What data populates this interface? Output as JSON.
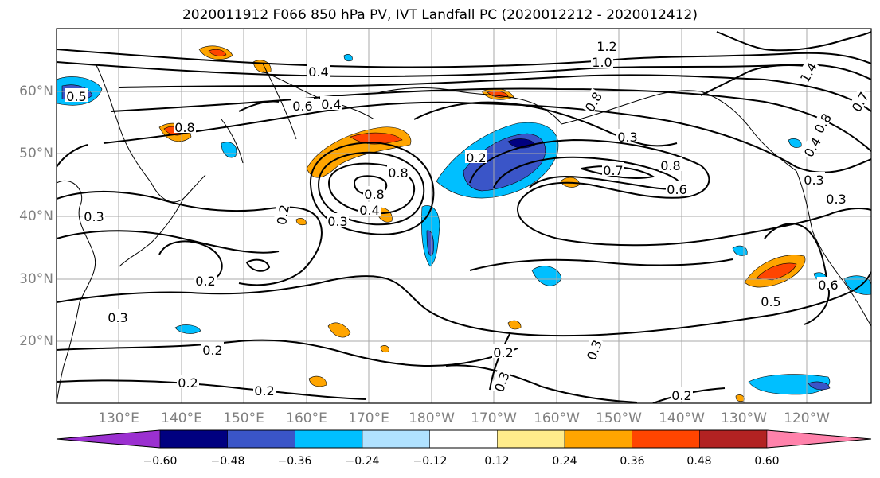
{
  "title": "2020011912 F066 850 hPa PV, IVT Landfall PC (2020012212 - 2020012412)",
  "lat_labels": [
    "60°N",
    "50°N",
    "40°N",
    "30°N",
    "20°N"
  ],
  "lon_labels": [
    "130°E",
    "140°E",
    "150°E",
    "160°E",
    "170°E",
    "180°W",
    "170°W",
    "160°W",
    "150°W",
    "140°W",
    "130°W",
    "120°W"
  ],
  "contour_labels": [
    "1.2",
    "1.0",
    "0.8",
    "0.4",
    "0.5",
    "0.6",
    "0.8",
    "0.3",
    "0.2",
    "0.7",
    "0.8",
    "0.6",
    "0.3",
    "0.8",
    "0.4",
    "0.3",
    "0.2",
    "0.2",
    "0.3",
    "0.2",
    "0.2",
    "0.2",
    "0.3",
    "0.3",
    "0.2",
    "0.5",
    "0.6",
    "0.3",
    "0.3",
    "0.4",
    "0.8",
    "0.7",
    "1.4",
    "0.8",
    "0.4",
    "0.2"
  ],
  "colorbar": {
    "ticks": [
      "−0.60",
      "−0.48",
      "−0.36",
      "−0.24",
      "−0.12",
      "0.12",
      "0.24",
      "0.36",
      "0.48",
      "0.60"
    ],
    "colors": [
      "#9b30d0",
      "#000080",
      "#3a55c8",
      "#00bfff",
      "#b0e2ff",
      "#ffffff",
      "#ffec8b",
      "#ffa500",
      "#ff4500",
      "#b22222",
      "#ff82ab"
    ]
  }
}
